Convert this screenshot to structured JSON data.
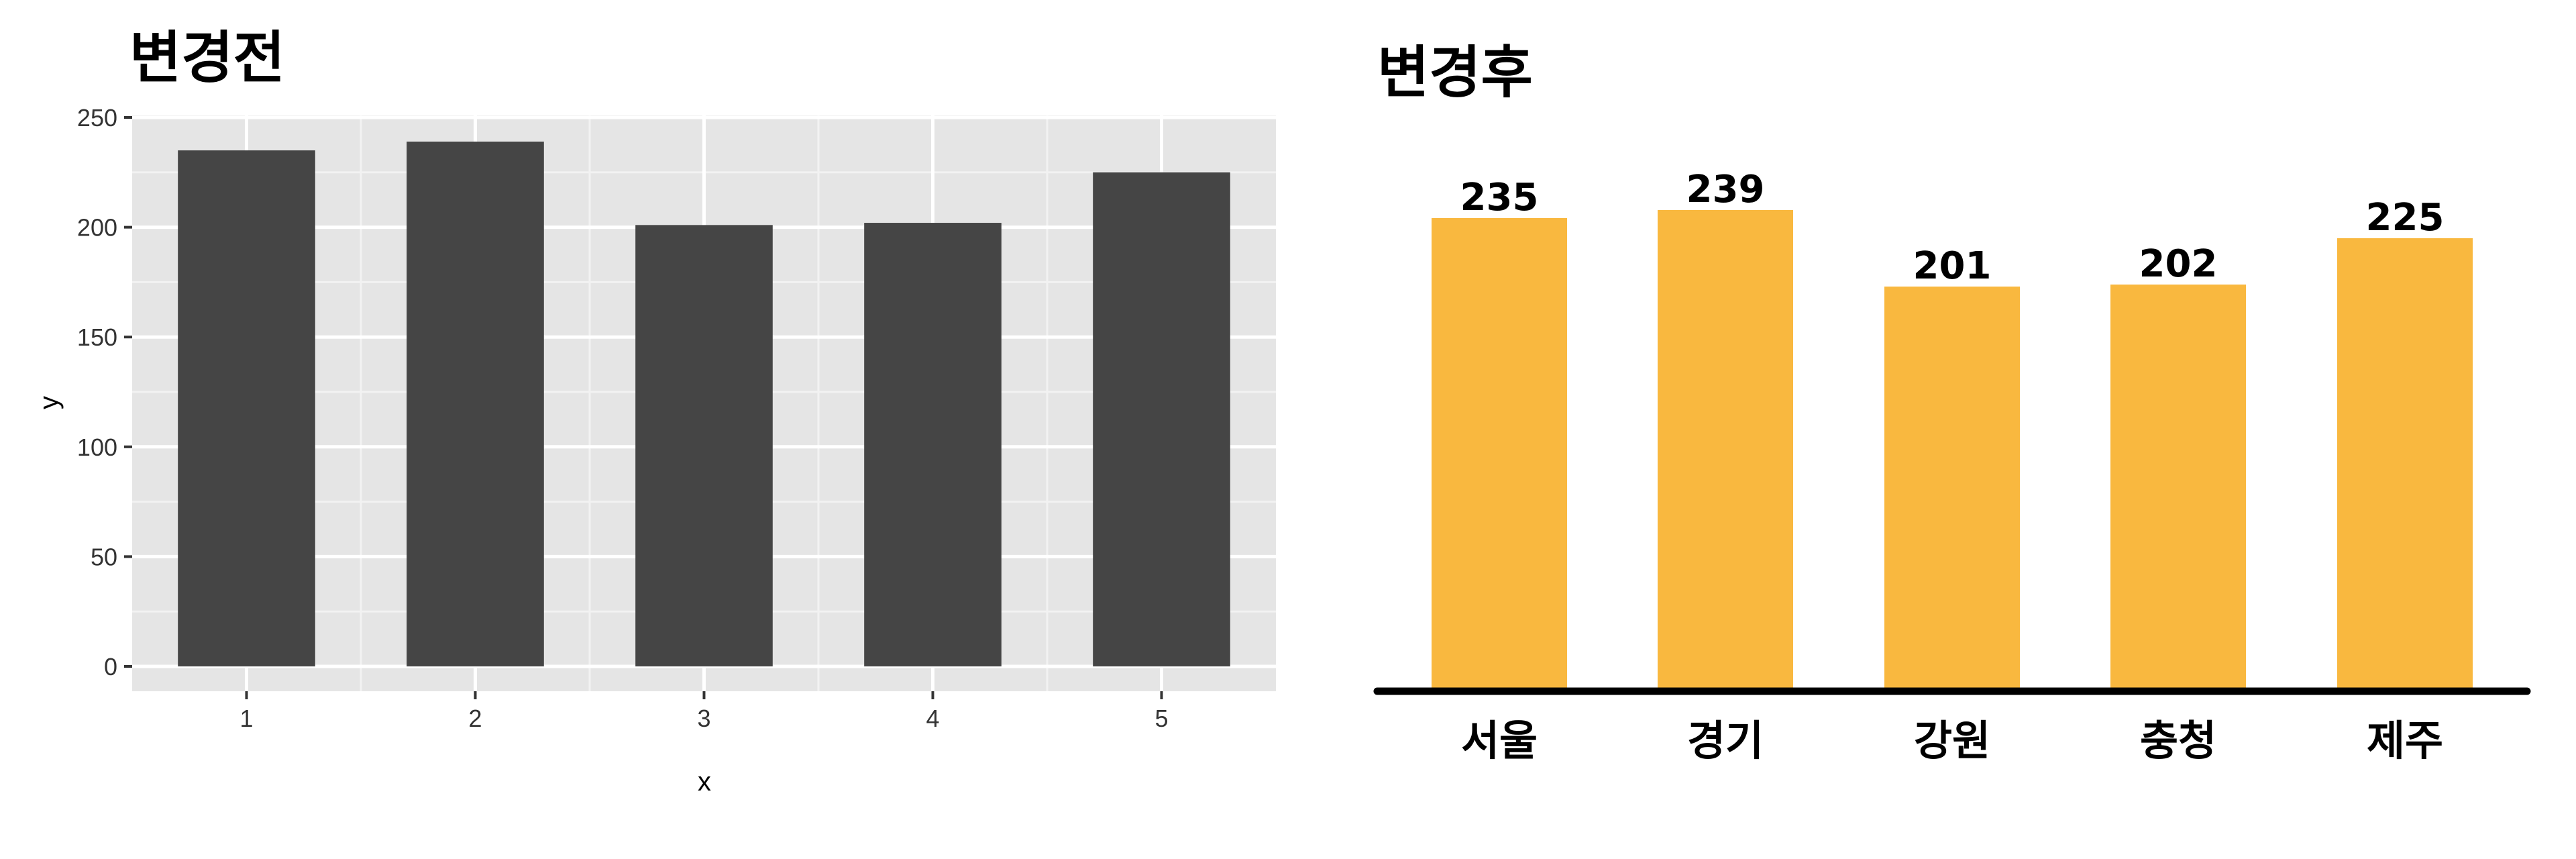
{
  "chart_data": [
    {
      "type": "bar",
      "title": "변경전",
      "xlabel": "x",
      "ylabel": "y",
      "categories": [
        "1",
        "2",
        "3",
        "4",
        "5"
      ],
      "values": [
        235,
        239,
        201,
        202,
        225
      ],
      "ylim": [
        0,
        250
      ],
      "yticks": [
        "0",
        "50",
        "100",
        "150",
        "200",
        "250"
      ],
      "grid": true,
      "bar_color": "#454545",
      "panel_color": "#E5E5E5"
    },
    {
      "type": "bar",
      "title": "변경후",
      "categories": [
        "서울",
        "경기",
        "강원",
        "충청",
        "제주"
      ],
      "values": [
        235,
        239,
        201,
        202,
        225
      ],
      "data_labels": [
        "235",
        "239",
        "201",
        "202",
        "225"
      ],
      "ylim": [
        0,
        250
      ],
      "grid": false,
      "bar_color": "#F9B83F"
    }
  ]
}
